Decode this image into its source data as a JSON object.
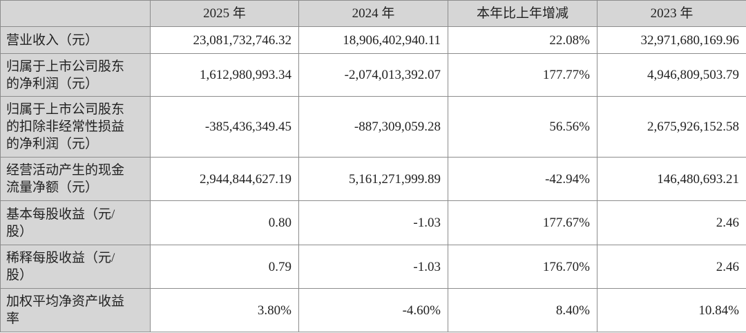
{
  "table": {
    "header": [
      "",
      "2025 年",
      "2024 年",
      "本年比上年增减",
      "2023 年"
    ],
    "rows": [
      [
        [
          "营业收入（元）"
        ],
        "23,081,732,746.32",
        "18,906,402,940.11",
        "22.08%",
        "32,971,680,169.96"
      ],
      [
        [
          "归属于上市公司股东",
          "的净利润（元）"
        ],
        "1,612,980,993.34",
        "-2,074,013,392.07",
        "177.77%",
        "4,946,809,503.79"
      ],
      [
        [
          "归属于上市公司股东",
          "的扣除非经常性损益",
          "的净利润（元）"
        ],
        "-385,436,349.45",
        "-887,309,059.28",
        "56.56%",
        "2,675,926,152.58"
      ],
      [
        [
          "经营活动产生的现金",
          "流量净额（元）"
        ],
        "2,944,844,627.19",
        "5,161,271,999.89",
        "-42.94%",
        "146,480,693.21"
      ],
      [
        [
          "基本每股收益（元/",
          "股）"
        ],
        "0.80",
        "-1.03",
        "177.67%",
        "2.46"
      ],
      [
        [
          "稀释每股收益（元/",
          "股）"
        ],
        "0.79",
        "-1.03",
        "176.70%",
        "2.46"
      ],
      [
        [
          "加权平均净资产收益",
          "率"
        ],
        "3.80%",
        "-4.60%",
        "8.40%",
        "10.84%"
      ]
    ]
  }
}
